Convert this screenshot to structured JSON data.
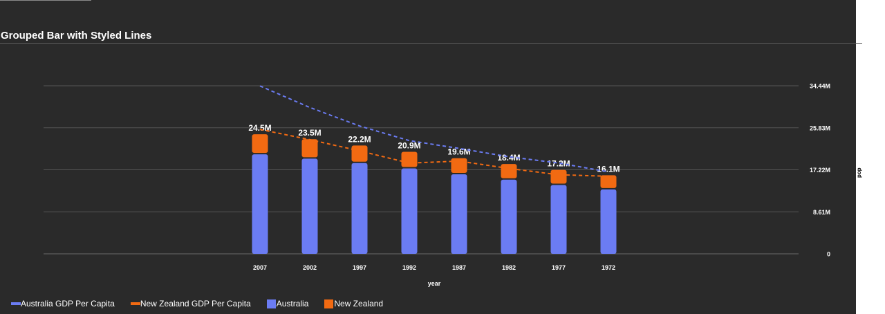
{
  "title": "Grouped Bar with Styled Lines",
  "colors": {
    "australia": "#6b7cf3",
    "new_zealand": "#f26a12",
    "grid": "#555555",
    "text": "#ffffff",
    "background": "#2a2a2a"
  },
  "chart_data": {
    "type": "bar",
    "title": "Grouped Bar with Styled Lines",
    "xlabel": "year",
    "ylabel": "pop",
    "categories": [
      "2007",
      "2002",
      "1997",
      "1992",
      "1987",
      "1982",
      "1977",
      "1972"
    ],
    "y_ticks": [
      "0",
      "8.61M",
      "17.22M",
      "25.83M",
      "34.44M"
    ],
    "y_tick_values": [
      0,
      8.61,
      17.22,
      25.83,
      34.44
    ],
    "ylim": [
      0,
      34.44
    ],
    "y_axis_side": "right",
    "bar_mode": "stacked",
    "series": [
      {
        "name": "Australia",
        "type": "bar",
        "values": [
          20.4,
          19.5,
          18.6,
          17.5,
          16.3,
          15.2,
          14.1,
          13.2
        ]
      },
      {
        "name": "New Zealand",
        "type": "bar",
        "values": [
          4.1,
          4.0,
          3.6,
          3.4,
          3.3,
          3.2,
          3.1,
          2.9
        ]
      },
      {
        "name": "Australia GDP Per Capita",
        "type": "line",
        "style": "dashed",
        "values": [
          34.4,
          30.0,
          26.2,
          23.2,
          21.6,
          19.9,
          18.6,
          16.8
        ]
      },
      {
        "name": "New Zealand GDP Per Capita",
        "type": "line",
        "style": "dashed",
        "values": [
          25.5,
          23.4,
          21.1,
          18.6,
          19.0,
          17.5,
          16.2,
          15.9
        ]
      }
    ],
    "total_labels": [
      "24.5M",
      "23.5M",
      "22.2M",
      "20.9M",
      "19.6M",
      "18.4M",
      "17.2M",
      "16.1M"
    ],
    "grid": true,
    "legend_position": "bottom-left"
  },
  "legend": [
    {
      "label": "Australia GDP Per Capita",
      "kind": "line",
      "color": "#6b7cf3"
    },
    {
      "label": "New Zealand GDP Per Capita",
      "kind": "line",
      "color": "#f26a12"
    },
    {
      "label": "Australia",
      "kind": "box",
      "color": "#6b7cf3"
    },
    {
      "label": "New Zealand",
      "kind": "box",
      "color": "#f26a12"
    }
  ]
}
